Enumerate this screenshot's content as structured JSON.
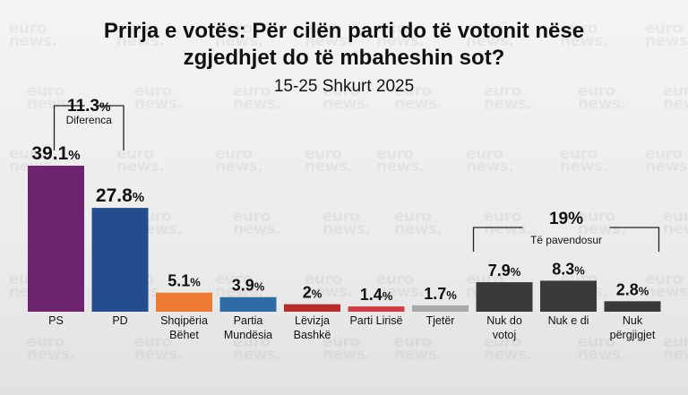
{
  "header": {
    "title_line1": "Prirja e votës: Për cilën parti do të votonit nëse",
    "title_line2": "zgjedhjet do të mbaheshin sot?",
    "subtitle": "15-25 Shkurt 2025"
  },
  "watermark": {
    "line1": "euro",
    "line2": "news."
  },
  "colors": {
    "PS": "#6f2470",
    "PD": "#234d8f",
    "Shqipëria Bëhet": "#ef7a33",
    "Partia Mundësia": "#2f6ca6",
    "Lëvizja Bashkë": "#b82b2b",
    "Parti Lirisë": "#cf3a45",
    "Tjetër": "#a8a8a8",
    "Nuk do votoj": "#3a3a3a",
    "Nuk e di": "#3a3a3a",
    "Nuk përgjigjet": "#3a3a3a"
  },
  "chart_data": {
    "type": "bar",
    "title": "Prirja e votës: Për cilën parti do të votonit nëse zgjedhjet do të mbaheshin sot?",
    "subtitle": "15-25 Shkurt 2025",
    "categories": [
      "PS",
      "PD",
      "Shqipëria Bëhet",
      "Partia Mundësia",
      "Lëvizja Bashkë",
      "Parti Lirisë",
      "Tjetër",
      "Nuk do votoj",
      "Nuk e di",
      "Nuk përgjigjet"
    ],
    "category_lines": [
      [
        "PS"
      ],
      [
        "PD"
      ],
      [
        "Shqipëria",
        "Bëhet"
      ],
      [
        "Partia",
        "Mundësia"
      ],
      [
        "Lëvizja",
        "Bashkë"
      ],
      [
        "Parti Lirisë"
      ],
      [
        "Tjetër"
      ],
      [
        "Nuk do",
        "votoj"
      ],
      [
        "Nuk e di"
      ],
      [
        "Nuk",
        "përgjigjet"
      ]
    ],
    "values": [
      39.1,
      27.8,
      5.1,
      3.9,
      2,
      1.4,
      1.7,
      7.9,
      8.3,
      2.8
    ],
    "value_labels": [
      "39.1",
      "27.8",
      "5.1",
      "3.9",
      "2",
      "1.4",
      "1.7",
      "7.9",
      "8.3",
      "2.8"
    ],
    "unit": "%",
    "ylim": [
      0,
      39.1
    ],
    "grid": false,
    "annotations": [
      {
        "value": "11.3%",
        "caption": "Diferenca",
        "from": "PS",
        "to": "PD"
      },
      {
        "value": "19%",
        "caption": "Të pavendosur",
        "from": "Nuk do votoj",
        "to": "Nuk përgjigjet"
      }
    ]
  }
}
